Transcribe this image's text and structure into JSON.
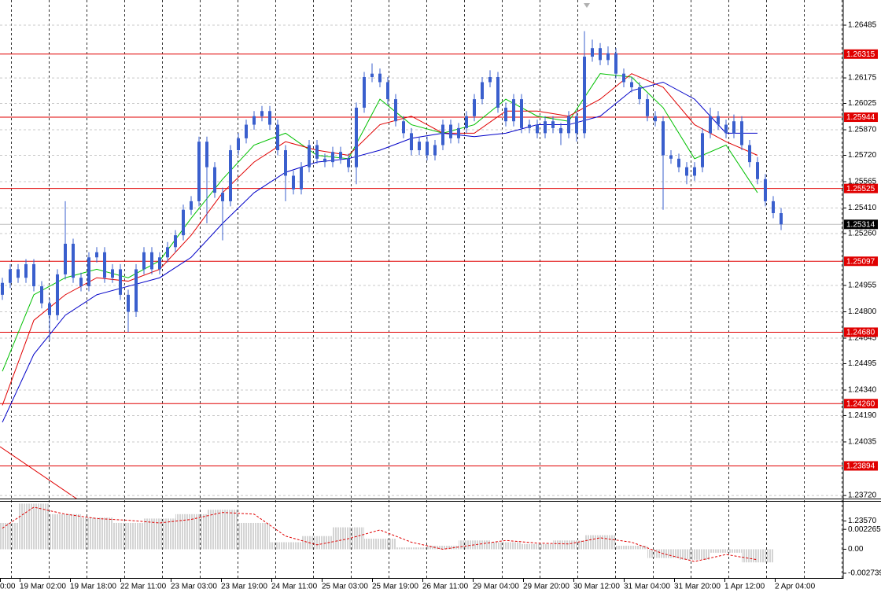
{
  "chart_data": {
    "type": "candlestick",
    "color": "#3a5fcd",
    "grid": true,
    "ylim": [
      1.23702,
      1.26633
    ],
    "yticks": [
      1.26485,
      1.26175,
      1.26025,
      {
        "value": 1.2587,
        "label": "1.25870"
      },
      {
        "value": 1.2572,
        "label": "1.25720"
      },
      1.25565,
      {
        "value": 1.2541,
        "label": "1.25410"
      },
      {
        "value": 1.2526,
        "label": "1.25260"
      },
      1.24955,
      {
        "value": 1.248,
        "label": "1.24800"
      },
      1.24645,
      1.24495,
      {
        "value": 1.2434,
        "label": "1.24340"
      },
      {
        "value": 1.2419,
        "label": "1.24190"
      },
      1.24035,
      {
        "value": 1.2372,
        "label": "1.23720"
      },
      {
        "value": 1.2357,
        "label": "1.23570"
      }
    ],
    "time_labels": [
      "0:00",
      "19 Mar 02:00",
      "19 Mar 18:00",
      "22 Mar 11:00",
      "23 Mar 03:00",
      "23 Mar 19:00",
      "24 Mar 11:00",
      "25 Mar 03:00",
      "25 Mar 19:00",
      "26 Mar 11:00",
      "29 Mar 04:00",
      "29 Mar 20:00",
      "30 Mar 12:00",
      "31 Mar 04:00",
      "31 Mar 20:00",
      "1 Apr 12:00",
      "2 Apr 04:00"
    ],
    "levels": [
      1.26315,
      1.25944,
      1.25525,
      1.25097,
      {
        "value": 1.2468,
        "label": "1.24680"
      },
      {
        "value": 1.2426,
        "label": "1.24260"
      },
      1.23894
    ],
    "level_color": "#e00000",
    "current_price": 1.25314,
    "open": [
      1.249,
      1.2497,
      1.2505,
      1.25,
      1.2508,
      1.2495,
      1.2485,
      1.2478,
      1.2502,
      1.252,
      1.25,
      1.2495,
      1.2512,
      1.2515,
      1.25,
      1.2505,
      1.249,
      1.248,
      1.2505,
      1.2515,
      1.2505,
      1.2512,
      1.2518,
      1.2525,
      1.254,
      1.2545,
      1.258,
      1.2565,
      1.255,
      1.2545,
      1.2575,
      1.2582,
      1.259,
      1.2595,
      1.2598,
      1.259,
      1.2575,
      1.256,
      1.2552,
      1.2565,
      1.2578,
      1.257,
      1.2568,
      1.2574,
      1.257,
      1.2565,
      1.26,
      1.2618,
      1.262,
      1.2615,
      1.2605,
      1.2592,
      1.2585,
      1.2575,
      1.258,
      1.2572,
      1.2578,
      1.259,
      1.2582,
      1.2588,
      1.2595,
      1.2605,
      1.2615,
      1.2618,
      1.26,
      1.2592,
      1.2605,
      1.2588,
      1.259,
      1.2585,
      1.2592,
      1.2588,
      1.2585,
      1.2595,
      1.2585,
      1.263,
      1.2635,
      1.2628,
      1.2632,
      1.262,
      1.2615,
      1.2612,
      1.2605,
      1.2595,
      1.2592,
      1.2572,
      1.257,
      1.2565,
      1.256,
      1.2565,
      1.2585,
      1.2595,
      1.259,
      1.2585,
      1.2592,
      1.2578,
      1.2568,
      1.2558,
      1.2545,
      1.2538
    ],
    "high": [
      1.25,
      1.2508,
      1.2508,
      1.2511,
      1.2511,
      1.2498,
      1.2488,
      1.2505,
      1.2545,
      1.2523,
      1.2503,
      1.2515,
      1.2518,
      1.2518,
      1.2508,
      1.2508,
      1.2493,
      1.2508,
      1.2518,
      1.2518,
      1.2515,
      1.2521,
      1.2528,
      1.2543,
      1.2548,
      1.2583,
      1.2583,
      1.2568,
      1.2553,
      1.2578,
      1.2585,
      1.2593,
      1.2598,
      1.2601,
      1.2601,
      1.2593,
      1.2578,
      1.2563,
      1.2568,
      1.2581,
      1.2581,
      1.2573,
      1.2577,
      1.2577,
      1.2573,
      1.2603,
      1.2621,
      1.2626,
      1.2623,
      1.2618,
      1.2608,
      1.2595,
      1.2588,
      1.2583,
      1.2583,
      1.2581,
      1.2593,
      1.2593,
      1.2591,
      1.2598,
      1.2608,
      1.2618,
      1.2622,
      1.2621,
      1.2603,
      1.2608,
      1.2608,
      1.2593,
      1.2593,
      1.2595,
      1.2595,
      1.2591,
      1.2598,
      1.2598,
      1.2645,
      1.264,
      1.2638,
      1.2636,
      1.2635,
      1.2623,
      1.2618,
      1.2615,
      1.2608,
      1.2598,
      1.2595,
      1.2575,
      1.2573,
      1.2568,
      1.2568,
      1.2588,
      1.26,
      1.2598,
      1.2593,
      1.2596,
      1.2595,
      1.2581,
      1.2571,
      1.2561,
      1.2548,
      1.2541
    ],
    "low": [
      1.2487,
      1.2494,
      1.2497,
      1.2497,
      1.2492,
      1.2482,
      1.2463,
      1.2475,
      1.2499,
      1.2497,
      1.2492,
      1.2492,
      1.2509,
      1.2497,
      1.2497,
      1.2487,
      1.2468,
      1.2477,
      1.2502,
      1.2502,
      1.2502,
      1.2509,
      1.2515,
      1.2522,
      1.2537,
      1.2542,
      1.2532,
      1.2547,
      1.2522,
      1.2542,
      1.2572,
      1.2579,
      1.2587,
      1.2592,
      1.2587,
      1.2572,
      1.2545,
      1.2549,
      1.2549,
      1.2562,
      1.2567,
      1.2565,
      1.2565,
      1.2567,
      1.2562,
      1.2555,
      1.2597,
      1.2615,
      1.2612,
      1.2602,
      1.2589,
      1.2582,
      1.2572,
      1.2572,
      1.2569,
      1.2569,
      1.2575,
      1.2579,
      1.2579,
      1.2585,
      1.2592,
      1.2602,
      1.2612,
      1.2597,
      1.2589,
      1.2589,
      1.2585,
      1.2585,
      1.2582,
      1.2582,
      1.2585,
      1.2578,
      1.2582,
      1.258,
      1.2582,
      1.2627,
      1.2625,
      1.2625,
      1.2617,
      1.2612,
      1.2609,
      1.2602,
      1.2592,
      1.2589,
      1.254,
      1.2567,
      1.2562,
      1.2555,
      1.2557,
      1.2562,
      1.2582,
      1.2587,
      1.2582,
      1.2582,
      1.2575,
      1.2565,
      1.2555,
      1.2542,
      1.2535,
      1.2528
    ],
    "close": [
      1.2497,
      1.2505,
      1.25,
      1.2508,
      1.2495,
      1.2485,
      1.2478,
      1.2502,
      1.252,
      1.25,
      1.2495,
      1.2512,
      1.2515,
      1.25,
      1.2505,
      1.249,
      1.248,
      1.2505,
      1.2515,
      1.2505,
      1.2512,
      1.2518,
      1.2525,
      1.254,
      1.2545,
      1.258,
      1.2565,
      1.255,
      1.2545,
      1.2575,
      1.2582,
      1.259,
      1.2595,
      1.2598,
      1.259,
      1.2575,
      1.256,
      1.2552,
      1.2565,
      1.2578,
      1.257,
      1.2568,
      1.2574,
      1.257,
      1.2565,
      1.26,
      1.2618,
      1.262,
      1.2615,
      1.2605,
      1.2592,
      1.2585,
      1.2575,
      1.258,
      1.2572,
      1.2578,
      1.259,
      1.2582,
      1.2588,
      1.2595,
      1.2605,
      1.2615,
      1.2618,
      1.26,
      1.2592,
      1.2605,
      1.2588,
      1.259,
      1.2585,
      1.2592,
      1.2588,
      1.2585,
      1.2595,
      1.2585,
      1.263,
      1.2635,
      1.2628,
      1.2632,
      1.262,
      1.2615,
      1.2612,
      1.2605,
      1.2595,
      1.2592,
      1.2572,
      1.257,
      1.2565,
      1.256,
      1.2565,
      1.2585,
      1.2595,
      1.259,
      1.2585,
      1.2592,
      1.2578,
      1.2568,
      1.2558,
      1.2545,
      1.2538,
      1.25314
    ],
    "moving_averages": [
      {
        "color": "#00c000",
        "values": [
          1.2445,
          1.249,
          1.25,
          1.2505,
          1.25,
          1.251,
          1.2535,
          1.2558,
          1.2578,
          1.2585,
          1.2572,
          1.257,
          1.2605,
          1.259,
          1.2585,
          1.259,
          1.2605,
          1.2595,
          1.2592,
          1.262,
          1.2618,
          1.26,
          1.257,
          1.2578,
          1.255
        ]
      },
      {
        "color": "#e00000",
        "values": [
          1.2425,
          1.2475,
          1.249,
          1.25,
          1.2498,
          1.2505,
          1.2525,
          1.255,
          1.2568,
          1.258,
          1.2575,
          1.2572,
          1.259,
          1.2595,
          1.2585,
          1.2585,
          1.2598,
          1.2598,
          1.2595,
          1.2605,
          1.262,
          1.2612,
          1.259,
          1.258,
          1.2572
        ]
      },
      {
        "color": "#0000c8",
        "values": [
          1.2415,
          1.2455,
          1.2478,
          1.249,
          1.2495,
          1.25,
          1.2512,
          1.2532,
          1.255,
          1.2562,
          1.2568,
          1.257,
          1.2575,
          1.2582,
          1.2585,
          1.2583,
          1.2585,
          1.259,
          1.259,
          1.2595,
          1.261,
          1.2615,
          1.2605,
          1.2585,
          1.2585
        ]
      }
    ],
    "indicator": {
      "ylim": [
        -0.00328,
        0.00551
      ],
      "yticks": [
        0.002265,
        {
          "value": 0,
          "label": "0.00"
        },
        -0.002739
      ],
      "hist_color": "#a0a0a0",
      "signal_color": "#e00000",
      "histogram": [
        0.003,
        0.0052,
        0.004,
        0.0036,
        0.003,
        0.0035,
        0.004,
        0.0045,
        0.003,
        0.0008,
        0.0015,
        0.0025,
        0.0012,
        0.0002,
        0.0004,
        0.001,
        0.0008,
        0.0006,
        0.001,
        0.0016,
        0.0004,
        -0.001,
        -0.0012,
        -0.0004,
        -0.0015
      ],
      "signal": [
        0.0024,
        0.0048,
        0.004,
        0.0035,
        0.0033,
        0.003,
        0.0034,
        0.0042,
        0.004,
        0.0015,
        0.0005,
        0.0012,
        0.0022,
        0.0008,
        0.0,
        0.0005,
        0.001,
        0.0007,
        0.0006,
        0.0013,
        0.0008,
        -0.0005,
        -0.0014,
        -0.0006,
        -0.0012
      ]
    }
  }
}
